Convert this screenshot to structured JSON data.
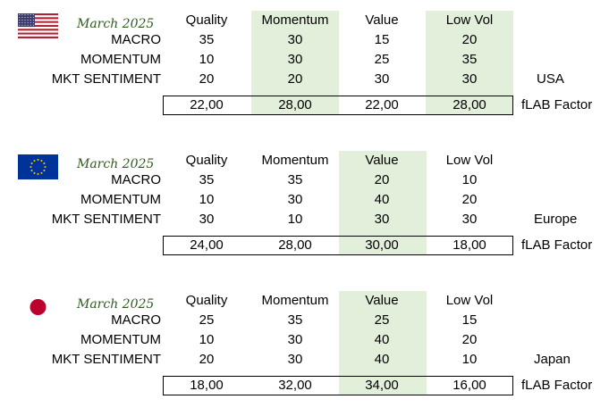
{
  "chart_data": [
    {
      "type": "table",
      "region": "USA",
      "period": "March 2025",
      "flag_icon": "usa-flag-icon",
      "columns": [
        "Quality",
        "Momentum",
        "Value",
        "Low Vol"
      ],
      "highlight_columns": [
        "Momentum",
        "Low Vol"
      ],
      "rows": [
        {
          "label": "MACRO",
          "values": [
            "35",
            "30",
            "15",
            "20"
          ]
        },
        {
          "label": "MOMENTUM",
          "values": [
            "10",
            "30",
            "25",
            "35"
          ]
        },
        {
          "label": "MKT SENTIMENT",
          "values": [
            "20",
            "20",
            "30",
            "30"
          ]
        }
      ],
      "total": {
        "label": "fLAB Factor",
        "values": [
          "22,00",
          "28,00",
          "22,00",
          "28,00"
        ]
      }
    },
    {
      "type": "table",
      "region": "Europe",
      "period": "March 2025",
      "flag_icon": "eu-flag-icon",
      "columns": [
        "Quality",
        "Momentum",
        "Value",
        "Low Vol"
      ],
      "highlight_columns": [
        "Value"
      ],
      "rows": [
        {
          "label": "MACRO",
          "values": [
            "35",
            "35",
            "20",
            "10"
          ]
        },
        {
          "label": "MOMENTUM",
          "values": [
            "10",
            "30",
            "40",
            "20"
          ]
        },
        {
          "label": "MKT SENTIMENT",
          "values": [
            "30",
            "10",
            "30",
            "30"
          ]
        }
      ],
      "total": {
        "label": "fLAB Factor",
        "values": [
          "24,00",
          "28,00",
          "30,00",
          "18,00"
        ]
      }
    },
    {
      "type": "table",
      "region": "Japan",
      "period": "March 2025",
      "flag_icon": "japan-flag-icon",
      "columns": [
        "Quality",
        "Momentum",
        "Value",
        "Low Vol"
      ],
      "highlight_columns": [
        "Value"
      ],
      "rows": [
        {
          "label": "MACRO",
          "values": [
            "25",
            "35",
            "25",
            "15"
          ]
        },
        {
          "label": "MOMENTUM",
          "values": [
            "10",
            "30",
            "40",
            "20"
          ]
        },
        {
          "label": "MKT SENTIMENT",
          "values": [
            "20",
            "30",
            "40",
            "10"
          ]
        }
      ],
      "total": {
        "label": "fLAB Factor",
        "values": [
          "18,00",
          "32,00",
          "34,00",
          "16,00"
        ]
      }
    }
  ],
  "colors": {
    "highlight": "#e2efda",
    "period_text": "#2e5b1f"
  }
}
